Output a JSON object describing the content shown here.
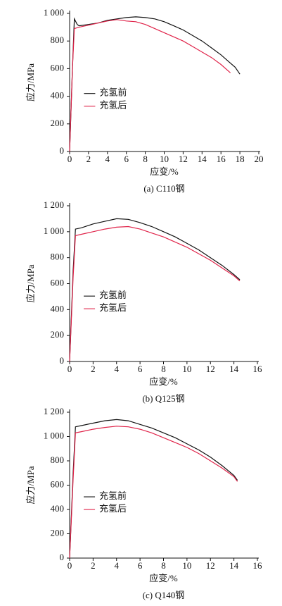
{
  "chart_data": [
    {
      "type": "line",
      "caption": "(a) C110钢",
      "xlabel": "应变/%",
      "ylabel": "应力/MPa",
      "legend": "center-left",
      "xlim": [
        0,
        20
      ],
      "xticks": [
        0,
        2,
        4,
        6,
        8,
        10,
        12,
        14,
        16,
        18,
        20
      ],
      "ylim": [
        0,
        1000
      ],
      "yticks": [
        0,
        200,
        400,
        600,
        800,
        {
          "value": 1000,
          "label": "1 000"
        }
      ],
      "series": [
        {
          "name": "充氢前",
          "color": "#111111",
          "x": [
            0,
            0.3,
            0.5,
            0.8,
            1,
            2,
            3,
            4,
            5,
            6,
            7,
            8,
            9,
            10,
            11,
            12,
            13,
            14,
            15,
            16,
            17,
            17.5,
            18
          ],
          "values": [
            0,
            600,
            960,
            920,
            910,
            920,
            930,
            950,
            960,
            970,
            975,
            970,
            960,
            940,
            910,
            880,
            840,
            800,
            750,
            700,
            640,
            610,
            560
          ]
        },
        {
          "name": "充氢后",
          "color": "#e0244a",
          "x": [
            0,
            0.3,
            0.5,
            1,
            2,
            3,
            4,
            5,
            6,
            7,
            8,
            9,
            10,
            11,
            12,
            13,
            14,
            15,
            16,
            17
          ],
          "values": [
            0,
            600,
            890,
            900,
            915,
            930,
            945,
            955,
            945,
            940,
            920,
            890,
            860,
            830,
            800,
            760,
            720,
            680,
            630,
            570
          ]
        }
      ]
    },
    {
      "type": "line",
      "caption": "(b) Q125钢",
      "xlabel": "应变/%",
      "ylabel": "应力/MPa",
      "legend": "center-left",
      "xlim": [
        0,
        16
      ],
      "xticks": [
        0,
        2,
        4,
        6,
        8,
        10,
        12,
        14,
        16
      ],
      "ylim": [
        0,
        1200
      ],
      "yticks": [
        0,
        200,
        400,
        600,
        800,
        {
          "value": 1000,
          "label": "1 000"
        },
        {
          "value": 1200,
          "label": "1 200"
        }
      ],
      "series": [
        {
          "name": "充氢前",
          "color": "#111111",
          "x": [
            0,
            0.3,
            0.5,
            1,
            2,
            3,
            4,
            5,
            6,
            7,
            8,
            9,
            10,
            11,
            12,
            13,
            14,
            14.5
          ],
          "values": [
            0,
            700,
            1020,
            1030,
            1060,
            1080,
            1100,
            1095,
            1070,
            1040,
            1000,
            960,
            910,
            860,
            800,
            740,
            670,
            630
          ]
        },
        {
          "name": "充氢后",
          "color": "#e0244a",
          "x": [
            0,
            0.3,
            0.5,
            1,
            2,
            3,
            4,
            5,
            6,
            7,
            8,
            9,
            10,
            11,
            12,
            13,
            14,
            14.5
          ],
          "values": [
            0,
            650,
            970,
            980,
            1000,
            1020,
            1035,
            1040,
            1020,
            990,
            960,
            920,
            880,
            830,
            780,
            720,
            660,
            620
          ]
        }
      ]
    },
    {
      "type": "line",
      "caption": "(c) Q140钢",
      "xlabel": "应变/%",
      "ylabel": "应力/MPa",
      "legend": "center-left",
      "xlim": [
        0,
        16
      ],
      "xticks": [
        0,
        2,
        4,
        6,
        8,
        10,
        12,
        14,
        16
      ],
      "ylim": [
        0,
        1200
      ],
      "yticks": [
        0,
        200,
        400,
        600,
        800,
        {
          "value": 1000,
          "label": "1 000"
        },
        {
          "value": 1200,
          "label": "1 200"
        }
      ],
      "series": [
        {
          "name": "充氢前",
          "color": "#111111",
          "x": [
            0,
            0.3,
            0.5,
            1,
            2,
            3,
            4,
            5,
            6,
            7,
            8,
            9,
            10,
            11,
            12,
            13,
            14,
            14.3
          ],
          "values": [
            0,
            700,
            1080,
            1090,
            1110,
            1130,
            1140,
            1130,
            1100,
            1070,
            1030,
            990,
            940,
            890,
            830,
            760,
            680,
            640
          ]
        },
        {
          "name": "充氢后",
          "color": "#e0244a",
          "x": [
            0,
            0.3,
            0.5,
            1,
            2,
            3,
            4,
            5,
            6,
            7,
            8,
            9,
            10,
            11,
            12,
            13,
            14,
            14.3
          ],
          "values": [
            0,
            650,
            1030,
            1040,
            1060,
            1075,
            1085,
            1080,
            1060,
            1030,
            990,
            950,
            910,
            860,
            800,
            740,
            670,
            630
          ]
        }
      ]
    }
  ]
}
